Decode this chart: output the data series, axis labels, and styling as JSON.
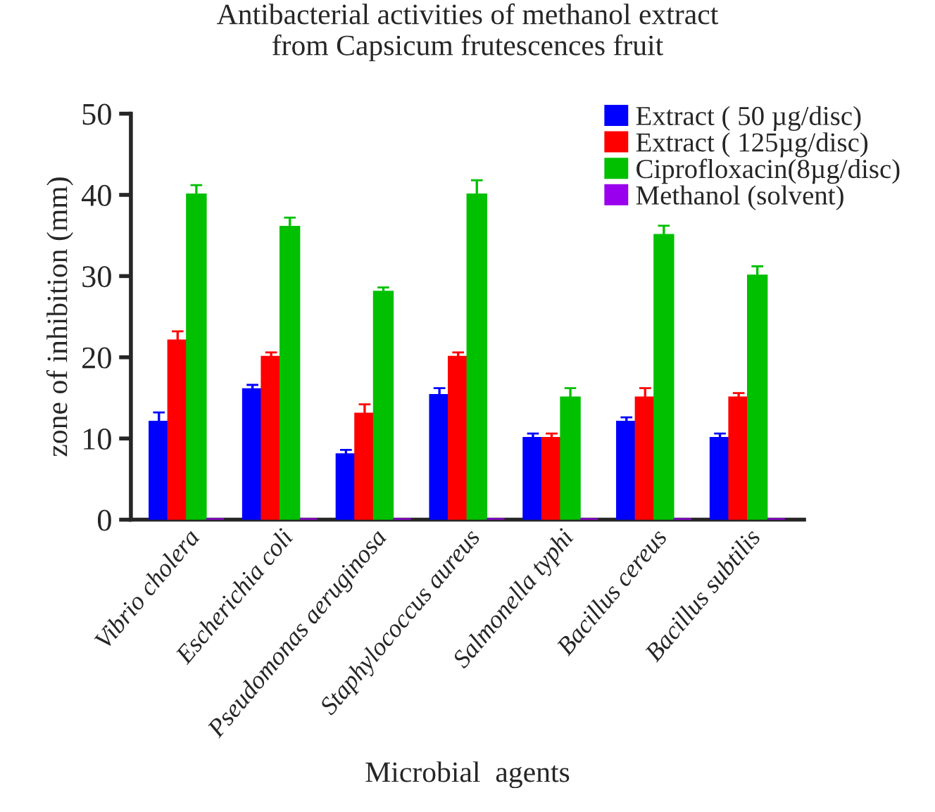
{
  "chart_data": {
    "type": "bar",
    "title": "Antibacterial activities of methanol extract\nfrom Capsicum frutescences fruit",
    "xlabel": "Microbial  agents",
    "ylabel": "zone of inhibition (mm)",
    "categories": [
      "Vibrio cholera",
      "Escherichia coli",
      "Pseudomonas aeruginosa",
      "Staphylococcus aureus",
      "Salmonella typhi",
      "Bacillus cereus",
      "Bacillus subtilis"
    ],
    "series": [
      {
        "name": "Extract ( 50 µg/disc)",
        "color": "#0000ff",
        "values": [
          12,
          16,
          8,
          15.3,
          10,
          12,
          10
        ],
        "errors": [
          1.2,
          0.6,
          0.6,
          0.9,
          0.6,
          0.6,
          0.6
        ]
      },
      {
        "name": "Extract ( 125µg/disc)",
        "color": "#ff0000",
        "values": [
          22,
          20,
          13,
          20,
          10,
          15,
          15
        ],
        "errors": [
          1.2,
          0.6,
          1.2,
          0.6,
          0.6,
          1.2,
          0.6
        ]
      },
      {
        "name": "Ciprofloxacin(8µg/disc)",
        "color": "#00c000",
        "values": [
          40,
          36,
          28,
          40,
          15,
          35,
          30
        ],
        "errors": [
          1.2,
          1.2,
          0.6,
          1.8,
          1.2,
          1.2,
          1.2
        ]
      },
      {
        "name": "Methanol (solvent)",
        "color": "#9900ee",
        "values": [
          0,
          0,
          0,
          0,
          0,
          0,
          0
        ]
      }
    ],
    "ylim": [
      0,
      50
    ],
    "yticks": [
      0,
      10,
      20,
      30,
      40,
      50
    ],
    "grid": false,
    "legend": "top right"
  }
}
